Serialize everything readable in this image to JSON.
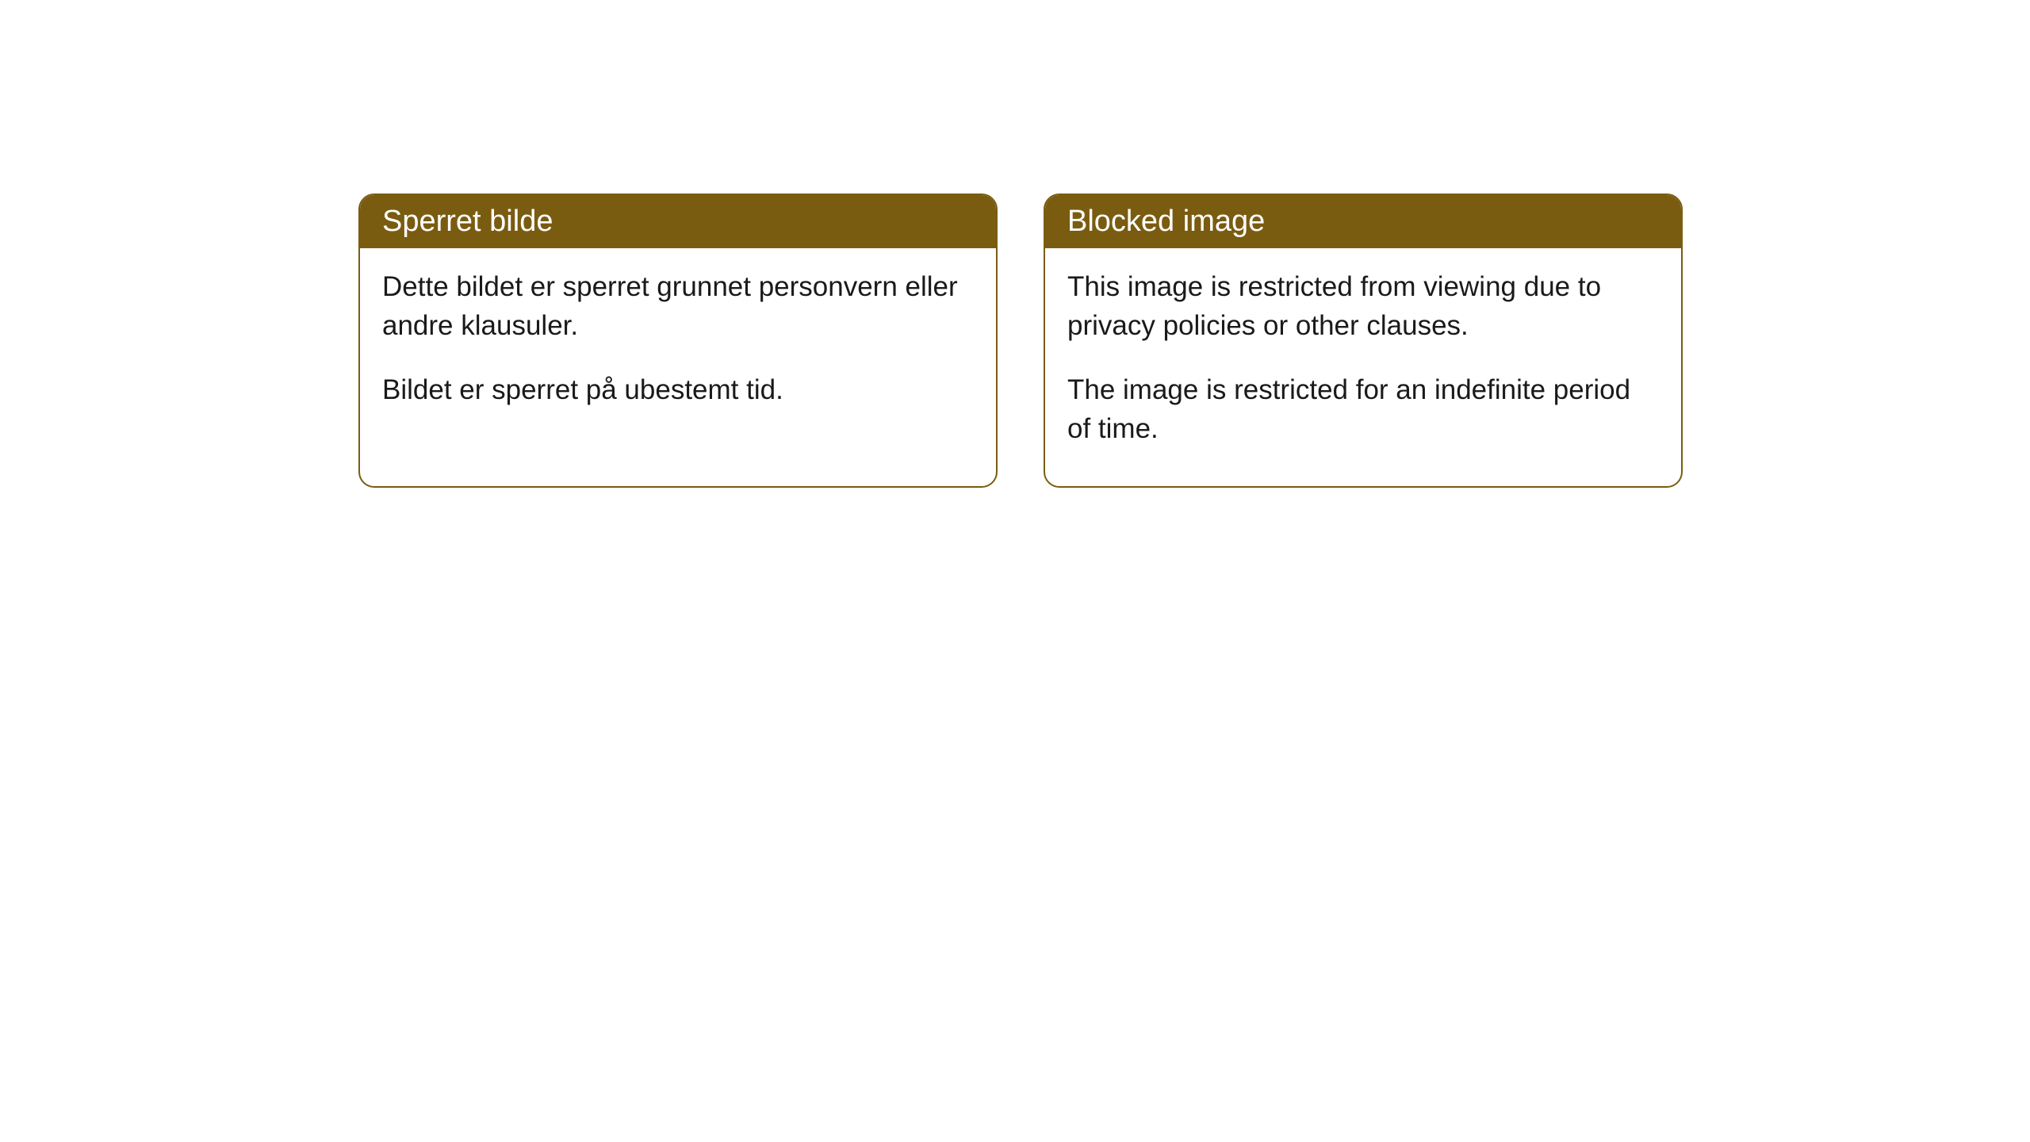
{
  "cards": [
    {
      "title": "Sperret bilde",
      "paragraph1": "Dette bildet er sperret grunnet personvern eller andre klausuler.",
      "paragraph2": "Bildet er sperret på ubestemt tid."
    },
    {
      "title": "Blocked image",
      "paragraph1": "This image is restricted from viewing due to privacy policies or other clauses.",
      "paragraph2": "The image is restricted for an indefinite period of time."
    }
  ],
  "styling": {
    "header_background": "#7a5c11",
    "header_text_color": "#ffffff",
    "card_border_color": "#7a5c11",
    "card_background": "#ffffff",
    "body_text_color": "#1a1a1a",
    "page_background": "#ffffff",
    "border_radius": 20,
    "header_fontsize": 38,
    "body_fontsize": 35
  }
}
